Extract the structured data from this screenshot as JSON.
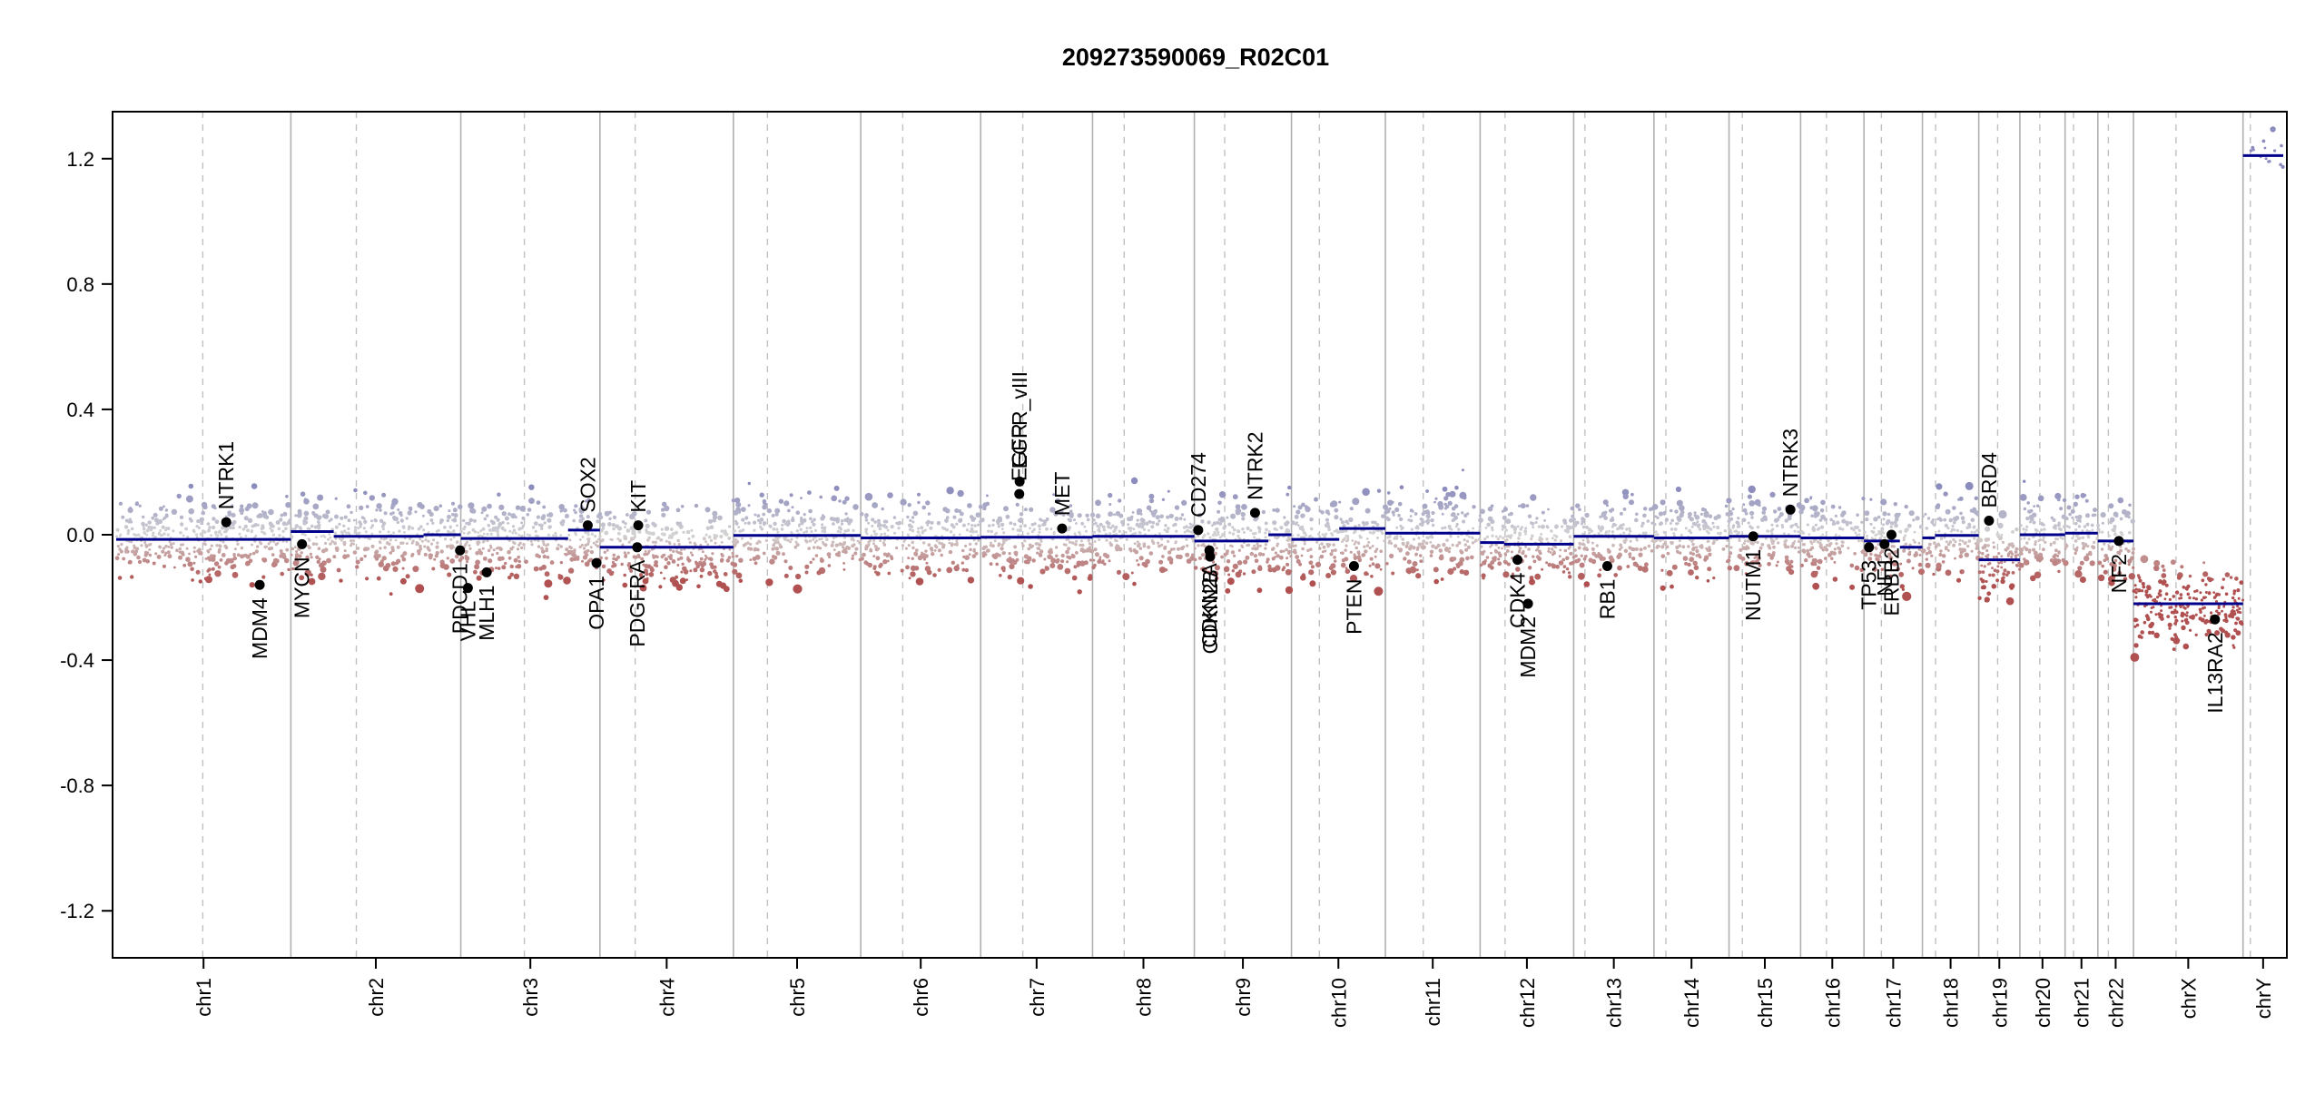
{
  "chart_data": {
    "type": "scatter",
    "title": "209273590069_R02C01",
    "xlabel": "",
    "ylabel": "",
    "ylim": [
      -1.35,
      1.35
    ],
    "y_ticks": [
      1.2,
      0.8,
      0.4,
      0.0,
      -0.4,
      -0.8,
      -1.2
    ],
    "y_tick_labels": [
      "1.2",
      "0.8",
      "0.4",
      "0.0",
      "-0.4",
      "-0.8",
      "-1.2"
    ],
    "colors": {
      "gain": "#8b8bbd",
      "neutral": "#d3d3d3",
      "loss": "#b05050",
      "segment": "#00008b",
      "gene_point": "#000000",
      "chrom_boundary": "#b0b0b0",
      "centromere": "#c0c0c0"
    },
    "chromosomes": [
      {
        "name": "chr1",
        "start": 0.0,
        "end": 248.9,
        "centromere": 123.4,
        "level": -0.015
      },
      {
        "name": "chr2",
        "start": 248.9,
        "end": 491.1,
        "centromere": 342.2,
        "level": -0.005
      },
      {
        "name": "chr3",
        "start": 491.1,
        "end": 689.4,
        "centromere": 581.7,
        "level": -0.012
      },
      {
        "name": "chr4",
        "start": 689.4,
        "end": 879.6,
        "centromere": 739.6,
        "level": -0.04
      },
      {
        "name": "chr5",
        "start": 879.6,
        "end": 1061.1,
        "centromere": 928.1,
        "level": -0.002
      },
      {
        "name": "chr6",
        "start": 1061.1,
        "end": 1232.0,
        "centromere": 1120.9,
        "level": -0.01
      },
      {
        "name": "chr7",
        "start": 1232.0,
        "end": 1391.4,
        "centromere": 1292.0,
        "level": -0.008
      },
      {
        "name": "chr8",
        "start": 1391.4,
        "end": 1536.5,
        "centromere": 1436.5,
        "level": -0.005
      },
      {
        "name": "chr9",
        "start": 1536.5,
        "end": 1674.9,
        "centromere": 1579.7,
        "level": -0.02
      },
      {
        "name": "chr10",
        "start": 1674.9,
        "end": 1808.7,
        "centromere": 1714.7,
        "level": -0.015
      },
      {
        "name": "chr11",
        "start": 1808.7,
        "end": 1943.8,
        "centromere": 1862.7,
        "level": 0.005
      },
      {
        "name": "chr12",
        "start": 1943.8,
        "end": 2077.1,
        "centromere": 1979.3,
        "level": -0.025
      },
      {
        "name": "chr13",
        "start": 2077.1,
        "end": 2191.5,
        "centromere": 2093.1,
        "level": -0.005
      },
      {
        "name": "chr14",
        "start": 2191.5,
        "end": 2298.5,
        "centromere": 2208.5,
        "level": -0.01
      },
      {
        "name": "chr15",
        "start": 2298.5,
        "end": 2400.5,
        "centromere": 2317.5,
        "level": -0.005
      },
      {
        "name": "chr16",
        "start": 2400.5,
        "end": 2490.8,
        "centromere": 2437.3,
        "level": -0.01
      },
      {
        "name": "chr17",
        "start": 2490.8,
        "end": 2574.1,
        "centromere": 2515.6,
        "level": -0.02
      },
      {
        "name": "chr18",
        "start": 2574.1,
        "end": 2654.4,
        "centromere": 2592.9,
        "level": -0.002
      },
      {
        "name": "chr19",
        "start": 2654.4,
        "end": 2713.0,
        "centromere": 2681.3,
        "level": -0.08
      },
      {
        "name": "chr20",
        "start": 2713.0,
        "end": 2777.4,
        "centromere": 2741.4,
        "level": 0.0
      },
      {
        "name": "chr21",
        "start": 2777.4,
        "end": 2824.1,
        "centromere": 2789.4,
        "level": 0.005
      },
      {
        "name": "chr22",
        "start": 2824.1,
        "end": 2874.9,
        "centromere": 2839.1,
        "level": -0.02
      },
      {
        "name": "chrX",
        "start": 2874.9,
        "end": 3031.0,
        "centromere": 2935.5,
        "level": -0.22
      },
      {
        "name": "chrY",
        "start": 3031.0,
        "end": 3088.3,
        "centromere": 3041.4,
        "level": 1.21
      }
    ],
    "segments": [
      {
        "start": 0.0,
        "end": 248.9,
        "value": -0.015
      },
      {
        "start": 248.9,
        "end": 310.0,
        "value": 0.01
      },
      {
        "start": 310.0,
        "end": 438.0,
        "value": -0.005
      },
      {
        "start": 438.0,
        "end": 491.1,
        "value": 0.0
      },
      {
        "start": 491.1,
        "end": 644.0,
        "value": -0.012
      },
      {
        "start": 644.0,
        "end": 689.4,
        "value": 0.015
      },
      {
        "start": 689.4,
        "end": 879.6,
        "value": -0.04
      },
      {
        "start": 879.6,
        "end": 1061.1,
        "value": -0.002
      },
      {
        "start": 1061.1,
        "end": 1232.0,
        "value": -0.01
      },
      {
        "start": 1232.0,
        "end": 1391.4,
        "value": -0.008
      },
      {
        "start": 1391.4,
        "end": 1536.5,
        "value": -0.005
      },
      {
        "start": 1536.5,
        "end": 1642.0,
        "value": -0.02
      },
      {
        "start": 1642.0,
        "end": 1674.9,
        "value": 0.0
      },
      {
        "start": 1674.9,
        "end": 1743.0,
        "value": -0.015
      },
      {
        "start": 1743.0,
        "end": 1808.7,
        "value": 0.02
      },
      {
        "start": 1808.7,
        "end": 1943.8,
        "value": 0.005
      },
      {
        "start": 1943.8,
        "end": 1978.0,
        "value": -0.025
      },
      {
        "start": 1978.0,
        "end": 2077.1,
        "value": -0.03
      },
      {
        "start": 2077.1,
        "end": 2191.5,
        "value": -0.005
      },
      {
        "start": 2191.5,
        "end": 2298.5,
        "value": -0.01
      },
      {
        "start": 2298.5,
        "end": 2400.5,
        "value": -0.005
      },
      {
        "start": 2400.5,
        "end": 2490.8,
        "value": -0.01
      },
      {
        "start": 2490.8,
        "end": 2542.0,
        "value": -0.02
      },
      {
        "start": 2542.0,
        "end": 2574.1,
        "value": -0.04
      },
      {
        "start": 2574.1,
        "end": 2592.0,
        "value": -0.01
      },
      {
        "start": 2592.0,
        "end": 2654.4,
        "value": -0.002
      },
      {
        "start": 2654.4,
        "end": 2713.0,
        "value": -0.08
      },
      {
        "start": 2713.0,
        "end": 2777.4,
        "value": 0.0
      },
      {
        "start": 2777.4,
        "end": 2824.1,
        "value": 0.005
      },
      {
        "start": 2824.1,
        "end": 2874.9,
        "value": -0.02
      },
      {
        "start": 2874.9,
        "end": 3031.0,
        "value": -0.22
      },
      {
        "start": 3031.0,
        "end": 3088.3,
        "value": 1.21
      }
    ],
    "genes": [
      {
        "name": "NTRK1",
        "x": 156.8,
        "y": 0.04,
        "label": "above"
      },
      {
        "name": "MDM4",
        "x": 204.5,
        "y": -0.16,
        "label": "below"
      },
      {
        "name": "MYCN",
        "x": 264.8,
        "y": -0.03,
        "label": "below"
      },
      {
        "name": "PDCD1",
        "x": 490.0,
        "y": -0.05,
        "label": "below"
      },
      {
        "name": "VHL",
        "x": 501.2,
        "y": -0.17,
        "label": "below"
      },
      {
        "name": "MLH1",
        "x": 528.0,
        "y": -0.12,
        "label": "below"
      },
      {
        "name": "SOX2",
        "x": 672.0,
        "y": 0.03,
        "label": "above"
      },
      {
        "name": "OPA1",
        "x": 684.5,
        "y": -0.09,
        "label": "below"
      },
      {
        "name": "KIT",
        "x": 744.0,
        "y": 0.03,
        "label": "above"
      },
      {
        "name": "PDGFRA",
        "x": 742.5,
        "y": -0.04,
        "label": "below"
      },
      {
        "name": "EGFR",
        "x": 1287.0,
        "y": 0.13,
        "label": "above"
      },
      {
        "name": "EGFR_vIII",
        "x": 1287.5,
        "y": 0.17,
        "label": "above"
      },
      {
        "name": "MET",
        "x": 1348.0,
        "y": 0.02,
        "label": "above"
      },
      {
        "name": "CD274",
        "x": 1542.0,
        "y": 0.015,
        "label": "above"
      },
      {
        "name": "CDKN2A",
        "x": 1558.0,
        "y": -0.05,
        "label": "below"
      },
      {
        "name": "CDKN2B",
        "x": 1559.0,
        "y": -0.07,
        "label": "below"
      },
      {
        "name": "NTRK2",
        "x": 1623.0,
        "y": 0.07,
        "label": "above"
      },
      {
        "name": "PTEN",
        "x": 1764.0,
        "y": -0.1,
        "label": "below"
      },
      {
        "name": "CDK4",
        "x": 1997.0,
        "y": -0.08,
        "label": "below"
      },
      {
        "name": "MDM2",
        "x": 2012.0,
        "y": -0.22,
        "label": "below"
      },
      {
        "name": "RB1",
        "x": 2125.0,
        "y": -0.1,
        "label": "below"
      },
      {
        "name": "NUTM1",
        "x": 2333.0,
        "y": -0.005,
        "label": "below"
      },
      {
        "name": "NTRK3",
        "x": 2386.0,
        "y": 0.08,
        "label": "above"
      },
      {
        "name": "TP53",
        "x": 2498.0,
        "y": -0.04,
        "label": "below"
      },
      {
        "name": "NF1",
        "x": 2520.0,
        "y": -0.03,
        "label": "below"
      },
      {
        "name": "ERBB2",
        "x": 2530.0,
        "y": 0.0,
        "label": "below"
      },
      {
        "name": "BRD4",
        "x": 2669.0,
        "y": 0.045,
        "label": "above"
      },
      {
        "name": "NF2",
        "x": 2854.0,
        "y": -0.02,
        "label": "below"
      },
      {
        "name": "IL13RA2",
        "x": 2991.0,
        "y": -0.27,
        "label": "below"
      }
    ]
  }
}
